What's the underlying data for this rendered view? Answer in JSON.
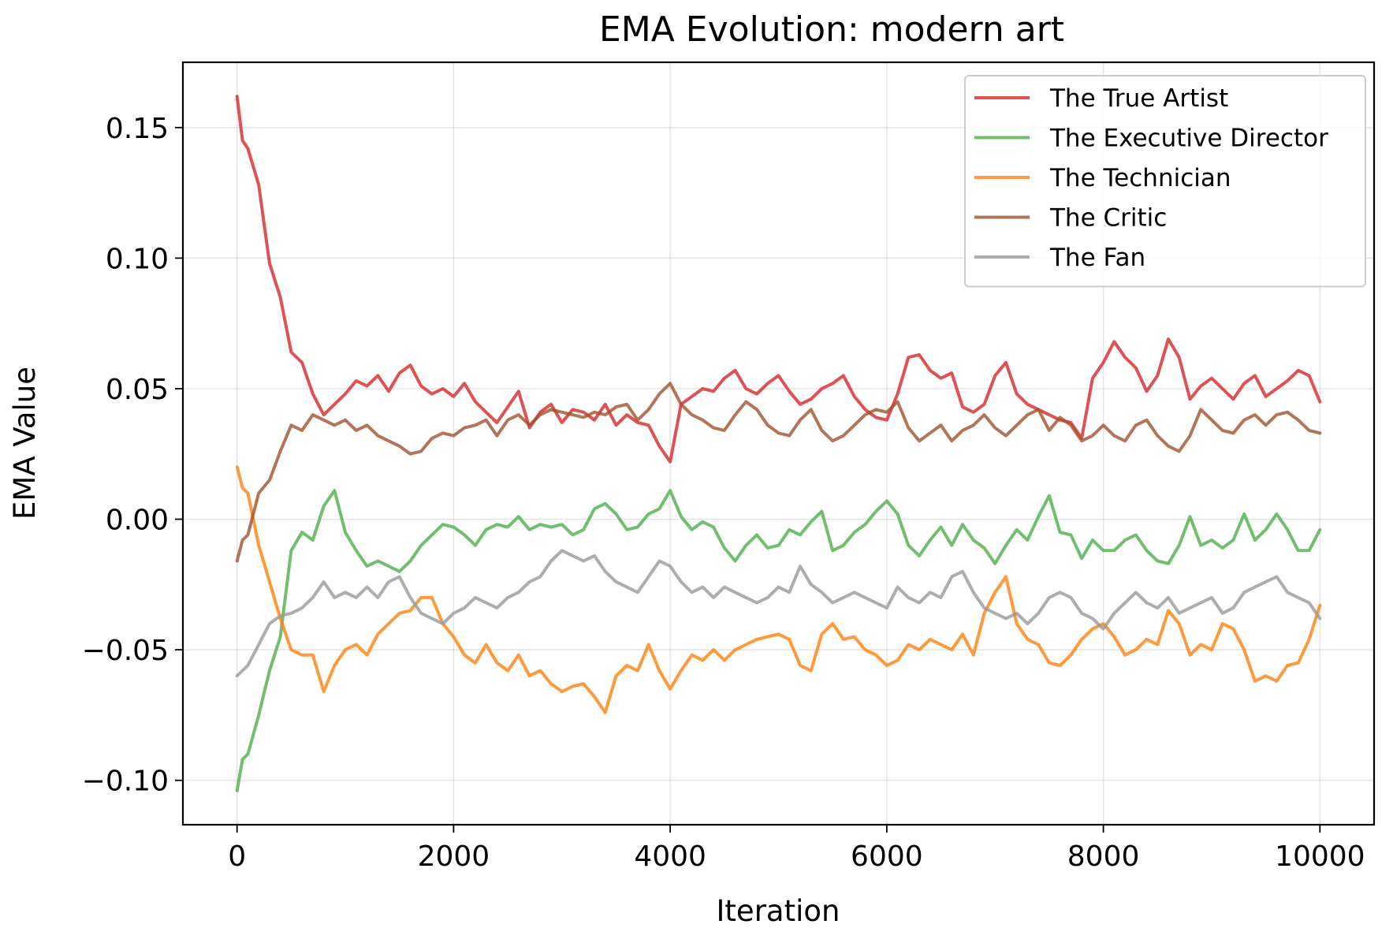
{
  "chart_data": {
    "type": "line",
    "title": "EMA Evolution: modern art",
    "xlabel": "Iteration",
    "ylabel": "EMA Value",
    "xlim": [
      -500,
      10500
    ],
    "ylim": [
      -0.117,
      0.175
    ],
    "grid": true,
    "legend_position": "top-right",
    "x_ticks": [
      {
        "value": 0,
        "label": "0"
      },
      {
        "value": 2000,
        "label": "2000"
      },
      {
        "value": 4000,
        "label": "4000"
      },
      {
        "value": 6000,
        "label": "6000"
      },
      {
        "value": 8000,
        "label": "8000"
      },
      {
        "value": 10000,
        "label": "10000"
      }
    ],
    "y_ticks": [
      {
        "value": 0.15,
        "label": "0.15"
      },
      {
        "value": 0.1,
        "label": "0.10"
      },
      {
        "value": 0.05,
        "label": "0.05"
      },
      {
        "value": 0.0,
        "label": "0.00"
      },
      {
        "value": -0.05,
        "label": "−0.05"
      },
      {
        "value": -0.1,
        "label": "−0.10"
      }
    ],
    "x": [
      0,
      50,
      100,
      200,
      300,
      400,
      500,
      600,
      700,
      800,
      900,
      1000,
      1100,
      1200,
      1300,
      1400,
      1500,
      1600,
      1700,
      1800,
      1900,
      2000,
      2100,
      2200,
      2300,
      2400,
      2500,
      2600,
      2700,
      2800,
      2900,
      3000,
      3100,
      3200,
      3300,
      3400,
      3500,
      3600,
      3700,
      3800,
      3900,
      4000,
      4100,
      4200,
      4300,
      4400,
      4500,
      4600,
      4700,
      4800,
      4900,
      5000,
      5100,
      5200,
      5300,
      5400,
      5500,
      5600,
      5700,
      5800,
      5900,
      6000,
      6100,
      6200,
      6300,
      6400,
      6500,
      6600,
      6700,
      6800,
      6900,
      7000,
      7100,
      7200,
      7300,
      7400,
      7500,
      7600,
      7700,
      7800,
      7900,
      8000,
      8100,
      8200,
      8300,
      8400,
      8500,
      8600,
      8700,
      8800,
      8900,
      9000,
      9100,
      9200,
      9300,
      9400,
      9500,
      9600,
      9700,
      9800,
      9900,
      10000
    ],
    "series": [
      {
        "name": "The True Artist",
        "color": "#d62728",
        "values": [
          0.162,
          0.145,
          0.142,
          0.128,
          0.098,
          0.085,
          0.064,
          0.06,
          0.048,
          0.04,
          0.044,
          0.048,
          0.053,
          0.051,
          0.055,
          0.049,
          0.056,
          0.059,
          0.051,
          0.048,
          0.05,
          0.047,
          0.052,
          0.045,
          0.041,
          0.037,
          0.043,
          0.049,
          0.035,
          0.041,
          0.044,
          0.037,
          0.042,
          0.041,
          0.038,
          0.044,
          0.036,
          0.04,
          0.037,
          0.036,
          0.028,
          0.022,
          0.044,
          0.047,
          0.05,
          0.049,
          0.054,
          0.057,
          0.05,
          0.048,
          0.052,
          0.055,
          0.049,
          0.044,
          0.046,
          0.05,
          0.052,
          0.055,
          0.047,
          0.042,
          0.039,
          0.038,
          0.048,
          0.062,
          0.063,
          0.057,
          0.054,
          0.056,
          0.043,
          0.041,
          0.044,
          0.055,
          0.06,
          0.048,
          0.044,
          0.042,
          0.04,
          0.038,
          0.037,
          0.031,
          0.054,
          0.06,
          0.068,
          0.062,
          0.058,
          0.049,
          0.055,
          0.069,
          0.062,
          0.046,
          0.051,
          0.054,
          0.05,
          0.046,
          0.052,
          0.055,
          0.047,
          0.05,
          0.053,
          0.057,
          0.055,
          0.045
        ]
      },
      {
        "name": "The Executive Director",
        "color": "#4daf4a",
        "values": [
          -0.104,
          -0.092,
          -0.09,
          -0.075,
          -0.058,
          -0.045,
          -0.012,
          -0.005,
          -0.008,
          0.005,
          0.011,
          -0.005,
          -0.012,
          -0.018,
          -0.016,
          -0.018,
          -0.02,
          -0.016,
          -0.01,
          -0.006,
          -0.002,
          -0.003,
          -0.006,
          -0.01,
          -0.004,
          -0.002,
          -0.003,
          0.001,
          -0.004,
          -0.002,
          -0.003,
          -0.002,
          -0.006,
          -0.004,
          0.004,
          0.006,
          0.002,
          -0.004,
          -0.003,
          0.002,
          0.004,
          0.011,
          0.001,
          -0.004,
          -0.001,
          -0.003,
          -0.011,
          -0.016,
          -0.01,
          -0.006,
          -0.011,
          -0.01,
          -0.004,
          -0.006,
          -0.001,
          0.003,
          -0.012,
          -0.01,
          -0.005,
          -0.002,
          0.003,
          0.007,
          0.002,
          -0.01,
          -0.014,
          -0.008,
          -0.003,
          -0.01,
          -0.002,
          -0.008,
          -0.011,
          -0.017,
          -0.01,
          -0.004,
          -0.008,
          0.001,
          0.009,
          -0.005,
          -0.006,
          -0.015,
          -0.008,
          -0.012,
          -0.012,
          -0.008,
          -0.006,
          -0.012,
          -0.016,
          -0.017,
          -0.01,
          0.001,
          -0.01,
          -0.008,
          -0.011,
          -0.008,
          0.002,
          -0.008,
          -0.004,
          0.002,
          -0.004,
          -0.012,
          -0.012,
          -0.004
        ]
      },
      {
        "name": "The Technician",
        "color": "#ff7f0e",
        "values": [
          0.02,
          0.012,
          0.01,
          -0.01,
          -0.024,
          -0.038,
          -0.05,
          -0.052,
          -0.052,
          -0.066,
          -0.056,
          -0.05,
          -0.048,
          -0.052,
          -0.044,
          -0.04,
          -0.036,
          -0.035,
          -0.03,
          -0.03,
          -0.04,
          -0.045,
          -0.052,
          -0.055,
          -0.048,
          -0.055,
          -0.058,
          -0.052,
          -0.06,
          -0.058,
          -0.063,
          -0.066,
          -0.064,
          -0.063,
          -0.068,
          -0.074,
          -0.06,
          -0.056,
          -0.058,
          -0.048,
          -0.058,
          -0.065,
          -0.058,
          -0.052,
          -0.054,
          -0.05,
          -0.054,
          -0.05,
          -0.048,
          -0.046,
          -0.045,
          -0.044,
          -0.046,
          -0.056,
          -0.058,
          -0.044,
          -0.04,
          -0.046,
          -0.045,
          -0.05,
          -0.052,
          -0.056,
          -0.054,
          -0.048,
          -0.05,
          -0.046,
          -0.048,
          -0.05,
          -0.044,
          -0.052,
          -0.036,
          -0.028,
          -0.022,
          -0.04,
          -0.046,
          -0.048,
          -0.055,
          -0.056,
          -0.052,
          -0.046,
          -0.042,
          -0.04,
          -0.045,
          -0.052,
          -0.05,
          -0.046,
          -0.048,
          -0.035,
          -0.04,
          -0.052,
          -0.048,
          -0.05,
          -0.04,
          -0.042,
          -0.05,
          -0.062,
          -0.06,
          -0.062,
          -0.056,
          -0.055,
          -0.046,
          -0.033
        ]
      },
      {
        "name": "The Critic",
        "color": "#a0522d",
        "values": [
          -0.016,
          -0.008,
          -0.006,
          0.01,
          0.015,
          0.026,
          0.036,
          0.034,
          0.04,
          0.038,
          0.036,
          0.038,
          0.034,
          0.036,
          0.032,
          0.03,
          0.028,
          0.025,
          0.026,
          0.031,
          0.033,
          0.032,
          0.035,
          0.036,
          0.038,
          0.032,
          0.038,
          0.04,
          0.036,
          0.04,
          0.042,
          0.041,
          0.04,
          0.039,
          0.041,
          0.04,
          0.043,
          0.044,
          0.038,
          0.042,
          0.048,
          0.052,
          0.044,
          0.04,
          0.038,
          0.035,
          0.034,
          0.04,
          0.045,
          0.042,
          0.036,
          0.033,
          0.032,
          0.038,
          0.042,
          0.034,
          0.03,
          0.032,
          0.036,
          0.04,
          0.042,
          0.041,
          0.045,
          0.035,
          0.03,
          0.033,
          0.036,
          0.03,
          0.034,
          0.036,
          0.04,
          0.035,
          0.032,
          0.036,
          0.04,
          0.042,
          0.034,
          0.039,
          0.036,
          0.03,
          0.032,
          0.036,
          0.032,
          0.03,
          0.036,
          0.038,
          0.032,
          0.028,
          0.026,
          0.032,
          0.042,
          0.038,
          0.034,
          0.033,
          0.038,
          0.04,
          0.036,
          0.04,
          0.041,
          0.038,
          0.034,
          0.033
        ]
      },
      {
        "name": "The Fan",
        "color": "#999999",
        "values": [
          -0.06,
          -0.058,
          -0.056,
          -0.048,
          -0.04,
          -0.037,
          -0.036,
          -0.034,
          -0.03,
          -0.024,
          -0.03,
          -0.028,
          -0.03,
          -0.026,
          -0.03,
          -0.024,
          -0.022,
          -0.03,
          -0.036,
          -0.038,
          -0.04,
          -0.036,
          -0.034,
          -0.03,
          -0.032,
          -0.034,
          -0.03,
          -0.028,
          -0.024,
          -0.022,
          -0.016,
          -0.012,
          -0.014,
          -0.016,
          -0.014,
          -0.02,
          -0.024,
          -0.026,
          -0.028,
          -0.022,
          -0.016,
          -0.018,
          -0.024,
          -0.028,
          -0.026,
          -0.03,
          -0.026,
          -0.028,
          -0.03,
          -0.032,
          -0.03,
          -0.026,
          -0.028,
          -0.018,
          -0.025,
          -0.028,
          -0.032,
          -0.03,
          -0.028,
          -0.03,
          -0.032,
          -0.034,
          -0.026,
          -0.03,
          -0.032,
          -0.028,
          -0.03,
          -0.022,
          -0.02,
          -0.028,
          -0.034,
          -0.036,
          -0.038,
          -0.036,
          -0.04,
          -0.036,
          -0.03,
          -0.028,
          -0.03,
          -0.036,
          -0.038,
          -0.042,
          -0.036,
          -0.032,
          -0.028,
          -0.032,
          -0.034,
          -0.03,
          -0.036,
          -0.034,
          -0.032,
          -0.03,
          -0.036,
          -0.034,
          -0.028,
          -0.026,
          -0.024,
          -0.022,
          -0.028,
          -0.03,
          -0.032,
          -0.038
        ]
      }
    ]
  }
}
